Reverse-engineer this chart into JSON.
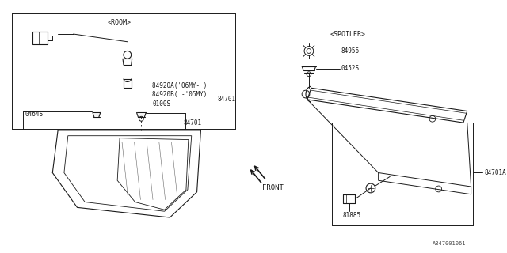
{
  "bg_color": "#ffffff",
  "line_color": "#1a1a1a",
  "gray": "#888888",
  "part_numbers": {
    "n0464S": "0464S",
    "n0100S": "0100S",
    "n84920B": "84920B( -'05MY)",
    "n84920A": "84920A('06MY- )",
    "n84701_left": "84701",
    "n84701A": "84701A",
    "n81885": "81885",
    "n0452S": "0452S",
    "n84956": "84956",
    "room_label": "<ROOM>",
    "spoiler_label": "<SPOILER>",
    "front_label": "FRONT",
    "watermark": "A847001061"
  },
  "figsize": [
    6.4,
    3.2
  ],
  "dpi": 100
}
